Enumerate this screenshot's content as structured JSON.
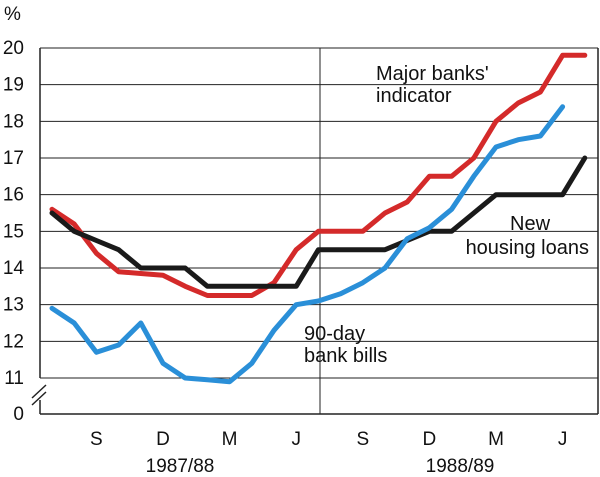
{
  "chart_data": {
    "type": "line",
    "unit_label": "%",
    "grid": true,
    "ylim": [
      11,
      20
    ],
    "y_ticks": [
      "20",
      "19",
      "18",
      "17",
      "16",
      "15",
      "14",
      "13",
      "12",
      "11"
    ],
    "y_zero_label": "0",
    "x_month_labels": [
      "S",
      "D",
      "M",
      "J",
      "S",
      "D",
      "M",
      "J"
    ],
    "x_year_labels": [
      "1987/88",
      "1988/89"
    ],
    "x": [
      "1987-07",
      "1987-08",
      "1987-09",
      "1987-10",
      "1987-11",
      "1987-12",
      "1988-01",
      "1988-02",
      "1988-03",
      "1988-04",
      "1988-05",
      "1988-06",
      "1988-07",
      "1988-08",
      "1988-09",
      "1988-10",
      "1988-11",
      "1988-12",
      "1989-01",
      "1989-02",
      "1989-03",
      "1989-04",
      "1989-05",
      "1989-06",
      "1989-07"
    ],
    "series": [
      {
        "name": "Major banks' indicator",
        "color": "#d42a2a",
        "values": [
          15.6,
          15.2,
          14.4,
          13.9,
          13.85,
          13.8,
          13.5,
          13.25,
          13.25,
          13.25,
          13.6,
          14.5,
          15.0,
          15.0,
          15.0,
          15.5,
          15.8,
          16.5,
          16.5,
          17.0,
          18.0,
          18.5,
          18.8,
          19.8,
          19.8
        ]
      },
      {
        "name": "New housing loans",
        "color": "#1a1a1a",
        "values": [
          15.5,
          15.0,
          14.75,
          14.5,
          14.0,
          14.0,
          14.0,
          13.5,
          13.5,
          13.5,
          13.5,
          13.5,
          14.5,
          14.5,
          14.5,
          14.5,
          14.75,
          15.0,
          15.0,
          15.5,
          16.0,
          16.0,
          16.0,
          16.0,
          17.0
        ]
      },
      {
        "name": "90-day bank bills",
        "color": "#2a8fd8",
        "values": [
          12.9,
          12.5,
          11.7,
          11.9,
          12.5,
          11.4,
          11.0,
          10.95,
          10.9,
          11.4,
          12.3,
          13.0,
          13.1,
          13.3,
          13.6,
          14.0,
          14.8,
          15.1,
          15.6,
          16.5,
          17.3,
          17.5,
          17.6,
          18.4,
          null
        ]
      }
    ],
    "annotations": [
      {
        "series": 0,
        "lines": [
          "Major banks'",
          "indicator"
        ]
      },
      {
        "series": 1,
        "lines": [
          "New",
          "housing loans"
        ]
      },
      {
        "series": 2,
        "lines": [
          "90-day",
          "bank bills"
        ]
      }
    ]
  }
}
